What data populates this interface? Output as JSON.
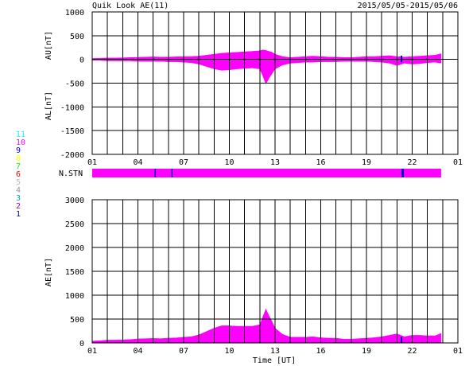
{
  "header": {
    "title": "Quik Look AE(11)",
    "date_range": "2015/05/05-2015/05/06"
  },
  "colors": {
    "fill": "#ff00ff",
    "gap": "#0000cc",
    "grid": "#000000"
  },
  "stations": {
    "label": "N.STN",
    "legend": [
      {
        "value": "11",
        "color": "#00ffff"
      },
      {
        "value": "10",
        "color": "#ff00ff"
      },
      {
        "value": "9",
        "color": "#0000ff"
      },
      {
        "value": "8",
        "color": "#ffff00"
      },
      {
        "value": "7",
        "color": "#00ff00"
      },
      {
        "value": "6",
        "color": "#ff0000"
      },
      {
        "value": "5",
        "color": "#bbbbbb"
      },
      {
        "value": "4",
        "color": "#999999"
      },
      {
        "value": "3",
        "color": "#00aaaa"
      },
      {
        "value": "2",
        "color": "#aa00aa"
      },
      {
        "value": "1",
        "color": "#0000aa"
      }
    ],
    "bar_end_hour": 22.9,
    "gap_hours": [
      4.1,
      5.2,
      20.3
    ]
  },
  "chart_data": [
    {
      "type": "area",
      "name": "AU/AL",
      "ylabel_upper": "AU[nT]",
      "ylabel_lower": "AL[nT]",
      "xlim": [
        0,
        24
      ],
      "ylim": [
        -2000,
        1000
      ],
      "yticks": [
        1000,
        500,
        0,
        -500,
        -1000,
        -1500,
        -2000
      ],
      "xtick_labels": [
        "01",
        "04",
        "07",
        "10",
        "13",
        "16",
        "19",
        "22",
        "01"
      ],
      "grid": true,
      "x": [
        0,
        0.5,
        1,
        1.5,
        2,
        2.5,
        3,
        3.5,
        4,
        4.5,
        5,
        5.5,
        6,
        6.5,
        7,
        7.5,
        8,
        8.5,
        9,
        9.5,
        10,
        10.5,
        11,
        11.2,
        11.4,
        11.6,
        11.8,
        12,
        12.5,
        13,
        13.5,
        14,
        14.5,
        15,
        15.5,
        16,
        16.5,
        17,
        17.5,
        18,
        18.5,
        19,
        19.5,
        20,
        20.5,
        21,
        21.5,
        22,
        22.5,
        22.9
      ],
      "au": [
        20,
        25,
        30,
        30,
        35,
        40,
        45,
        50,
        55,
        50,
        50,
        55,
        60,
        60,
        70,
        90,
        110,
        130,
        140,
        150,
        160,
        170,
        180,
        200,
        190,
        170,
        150,
        110,
        60,
        40,
        50,
        60,
        70,
        60,
        50,
        50,
        40,
        40,
        50,
        60,
        60,
        70,
        80,
        60,
        50,
        60,
        70,
        80,
        90,
        120
      ],
      "al": [
        -20,
        -20,
        -30,
        -30,
        -30,
        -30,
        -40,
        -40,
        -40,
        -40,
        -50,
        -50,
        -60,
        -70,
        -100,
        -150,
        -200,
        -230,
        -220,
        -200,
        -190,
        -180,
        -200,
        -350,
        -520,
        -400,
        -300,
        -200,
        -120,
        -80,
        -70,
        -60,
        -60,
        -50,
        -50,
        -50,
        -40,
        -40,
        -40,
        -40,
        -50,
        -60,
        -80,
        -130,
        -80,
        -100,
        -90,
        -70,
        -60,
        -80
      ]
    },
    {
      "type": "area",
      "name": "AE",
      "ylabel": "AE[nT]",
      "xlabel": "Time [UT]",
      "xlim": [
        0,
        24
      ],
      "ylim": [
        0,
        3000
      ],
      "yticks": [
        3000,
        2500,
        2000,
        1500,
        1000,
        500,
        0
      ],
      "xtick_labels": [
        "01",
        "04",
        "07",
        "10",
        "13",
        "16",
        "19",
        "22",
        "01"
      ],
      "grid": true,
      "x": [
        0,
        0.5,
        1,
        1.5,
        2,
        2.5,
        3,
        3.5,
        4,
        4.5,
        5,
        5.5,
        6,
        6.5,
        7,
        7.5,
        8,
        8.5,
        9,
        9.5,
        10,
        10.5,
        11,
        11.2,
        11.4,
        11.6,
        11.8,
        12,
        12.5,
        13,
        13.5,
        14,
        14.5,
        15,
        15.5,
        16,
        16.5,
        17,
        17.5,
        18,
        18.5,
        19,
        19.5,
        20,
        20.5,
        21,
        21.5,
        22,
        22.5,
        22.9
      ],
      "values": [
        40,
        45,
        60,
        60,
        65,
        70,
        85,
        90,
        95,
        90,
        100,
        105,
        120,
        130,
        170,
        240,
        310,
        360,
        360,
        350,
        350,
        350,
        380,
        550,
        710,
        570,
        450,
        310,
        180,
        120,
        120,
        120,
        130,
        110,
        100,
        100,
        80,
        80,
        90,
        100,
        110,
        130,
        160,
        190,
        130,
        160,
        160,
        150,
        150,
        200
      ]
    }
  ]
}
